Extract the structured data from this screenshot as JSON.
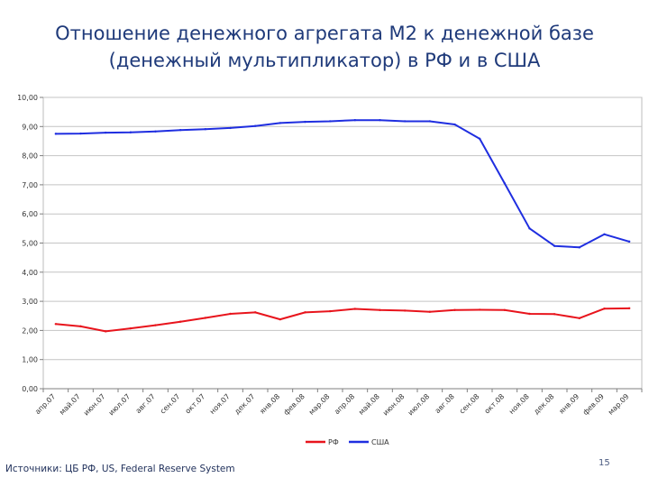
{
  "title_line1": "Отношение денежного агрегата М2 к денежной базе",
  "title_line2": "(денежный мультипликатор) в РФ и в США",
  "source": "Источники: ЦБ РФ, US, Federal Reserve System",
  "page_number": "15",
  "chart_data": {
    "type": "line",
    "title": "",
    "xlabel": "",
    "ylabel": "",
    "ylim": [
      0,
      10
    ],
    "y_ticks": [
      "0,00",
      "1,00",
      "2,00",
      "3,00",
      "4,00",
      "5,00",
      "6,00",
      "7,00",
      "8,00",
      "9,00",
      "10,00"
    ],
    "grid": "horizontal",
    "legend_position": "bottom",
    "categories": [
      "апр.07",
      "май.07",
      "июн.07",
      "июл.07",
      "авг.07",
      "сен.07",
      "окт.07",
      "ноя.07",
      "дек.07",
      "янв.08",
      "фев.08",
      "мар.08",
      "апр.08",
      "май.08",
      "июн.08",
      "июл.08",
      "авг.08",
      "сен.08",
      "окт.08",
      "ноя.08",
      "дек.08",
      "янв.09",
      "фев.09",
      "мар.09"
    ],
    "series": [
      {
        "name": "РФ",
        "color": "#e8141c",
        "values": [
          2.22,
          2.14,
          1.97,
          2.07,
          2.18,
          2.3,
          2.43,
          2.57,
          2.62,
          2.38,
          2.62,
          2.66,
          2.74,
          2.7,
          2.68,
          2.64,
          2.7,
          2.71,
          2.7,
          2.57,
          2.56,
          2.42,
          2.75,
          2.76
        ]
      },
      {
        "name": "США",
        "color": "#1f2ee0",
        "values": [
          8.75,
          8.76,
          8.79,
          8.8,
          8.83,
          8.88,
          8.91,
          8.95,
          9.02,
          9.12,
          9.16,
          9.18,
          9.22,
          9.22,
          9.18,
          9.18,
          9.07,
          8.58,
          7.05,
          5.5,
          4.9,
          4.85,
          5.3,
          5.05
        ]
      }
    ]
  }
}
